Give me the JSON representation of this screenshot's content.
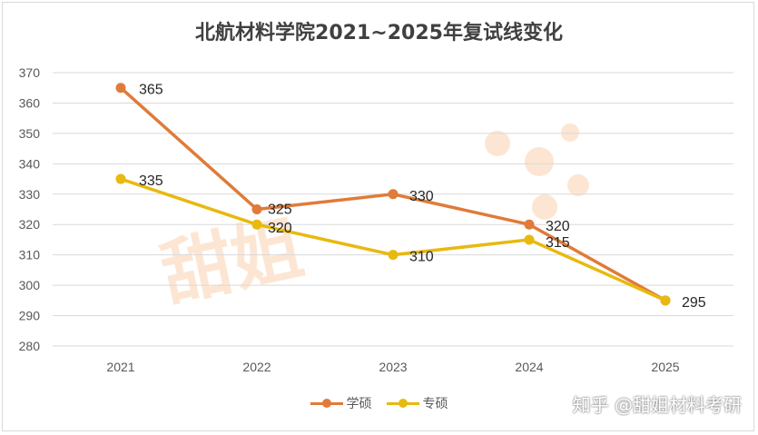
{
  "chart_data": {
    "type": "line",
    "title": "北航材料学院2021~2025年复试线变化",
    "categories": [
      "2021",
      "2022",
      "2023",
      "2024",
      "2025"
    ],
    "ylim": [
      280,
      370
    ],
    "yticks": [
      280,
      290,
      300,
      310,
      320,
      330,
      340,
      350,
      360,
      370
    ],
    "grid": true,
    "legend": "bottom",
    "series": [
      {
        "name": "学硕",
        "color": "#e07b39",
        "values": [
          365,
          325,
          330,
          320,
          295
        ]
      },
      {
        "name": "专硕",
        "color": "#e8b90f",
        "values": [
          335,
          320,
          310,
          315,
          295
        ]
      }
    ]
  },
  "footer": {
    "text": "知乎 @甜姐材料考研"
  }
}
